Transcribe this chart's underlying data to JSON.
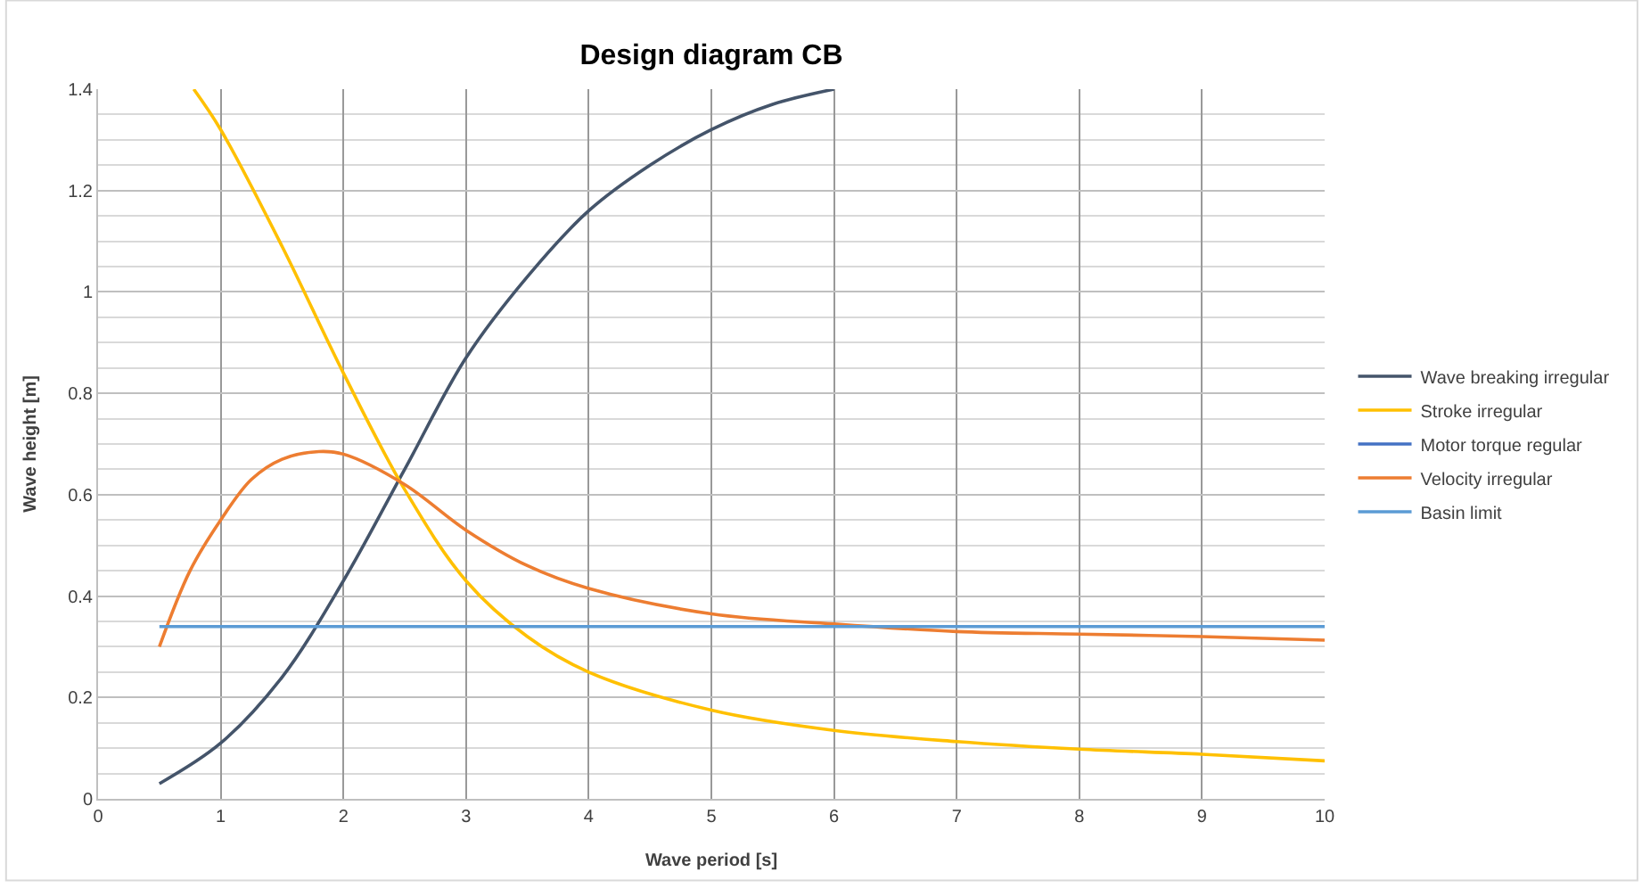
{
  "chart_data": {
    "type": "line",
    "title": "Design diagram CB",
    "xlabel": "Wave period [s]",
    "ylabel": "Wave height [m]",
    "xlim": [
      0,
      10
    ],
    "xticks": [
      0,
      1,
      2,
      3,
      4,
      5,
      6,
      7,
      8,
      9,
      10
    ],
    "ylim": [
      0,
      1.4
    ],
    "yticks": [
      0,
      0.2,
      0.4,
      0.6,
      0.8,
      1,
      1.2,
      1.4
    ],
    "grid": true,
    "legend": "right",
    "marker": "none",
    "line_style": "solid",
    "series": [
      {
        "name": "Wave breaking irregular",
        "color": "#44546a",
        "x": [
          0.5,
          1,
          1.5,
          2,
          2.5,
          3,
          3.5,
          4,
          4.5,
          5,
          5.5,
          6
        ],
        "values": [
          0.03,
          0.11,
          0.24,
          0.43,
          0.65,
          0.87,
          1.03,
          1.16,
          1.25,
          1.32,
          1.37,
          1.4
        ]
      },
      {
        "name": "Stroke irregular",
        "color": "#ffc000",
        "x": [
          0.78,
          1,
          1.5,
          2,
          2.5,
          3,
          3.5,
          4,
          5,
          6,
          7,
          8,
          9,
          10
        ],
        "values": [
          1.4,
          1.32,
          1.09,
          0.84,
          0.61,
          0.43,
          0.32,
          0.25,
          0.175,
          0.135,
          0.113,
          0.098,
          0.088,
          0.075
        ]
      },
      {
        "name": "Motor torque regular",
        "color": "#4472c4"
      },
      {
        "name": "Velocity irregular",
        "color": "#ed7d31",
        "x": [
          0.5,
          0.75,
          1,
          1.25,
          1.5,
          1.8,
          2,
          2.5,
          3,
          3.5,
          4,
          5,
          6,
          7,
          8,
          9,
          10
        ],
        "values": [
          0.3,
          0.45,
          0.55,
          0.63,
          0.67,
          0.685,
          0.68,
          0.62,
          0.53,
          0.46,
          0.415,
          0.365,
          0.345,
          0.33,
          0.325,
          0.32,
          0.313
        ]
      },
      {
        "name": "Basin limit",
        "color": "#5b9bd5",
        "x": [
          0.5,
          10
        ],
        "values": [
          0.34,
          0.34
        ]
      }
    ]
  }
}
